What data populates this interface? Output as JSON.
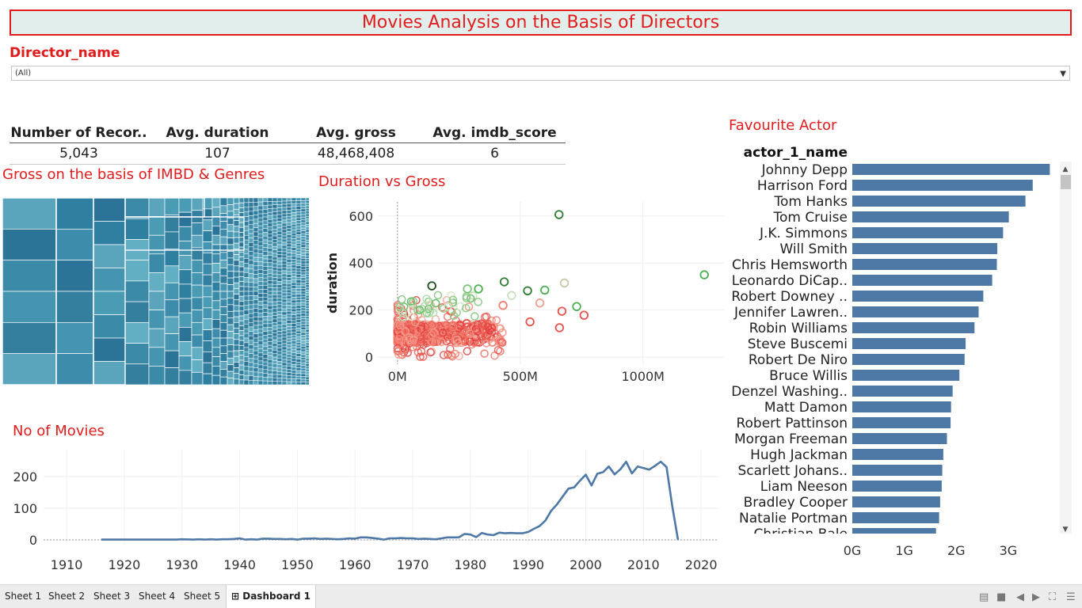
{
  "title": "Movies Analysis on the Basis of Directors",
  "filter": {
    "label": "Director_name",
    "value": "(All)"
  },
  "kpi": {
    "headers": [
      "Number of Recor..",
      "Avg. duration",
      "Avg. gross",
      "Avg. imdb_score"
    ],
    "values": [
      "5,043",
      "107",
      "48,468,408",
      "6"
    ]
  },
  "treemap": {
    "title": "Gross on the basis of IMBD & Genres"
  },
  "scatter_title": "Duration vs Gross",
  "line_title": "No of Movies",
  "bar_title": "Favourite Actor",
  "colors": {
    "accent_red": "#e21c1c",
    "bar": "#4e79a7",
    "line": "#4e79a7",
    "teal": "#3a8aa8"
  },
  "chart_data": [
    {
      "type": "scatter",
      "title": "Duration vs Gross",
      "xlabel": "",
      "ylabel": "duration",
      "xlim": [
        -80,
        1330
      ],
      "ylim": [
        -30,
        660
      ],
      "x_ticks": [
        "0M",
        "500M",
        "1000M"
      ],
      "x_tick_values": [
        0,
        500,
        1000
      ],
      "y_ticks": [
        "0",
        "200",
        "400",
        "600"
      ],
      "y_tick_values": [
        0,
        200,
        400,
        600
      ],
      "highlights": [
        {
          "x": 658,
          "y": 606,
          "c": "#2e7d32"
        },
        {
          "x": 1250,
          "y": 350,
          "c": "#4caf50"
        },
        {
          "x": 435,
          "y": 320,
          "c": "#2e7d32"
        },
        {
          "x": 680,
          "y": 315,
          "c": "#c8c8a8"
        },
        {
          "x": 140,
          "y": 303,
          "c": "#1b4d1b"
        },
        {
          "x": 330,
          "y": 290,
          "c": "#4caf50"
        },
        {
          "x": 285,
          "y": 290,
          "c": "#7cc47c"
        },
        {
          "x": 600,
          "y": 285,
          "c": "#4caf50"
        },
        {
          "x": 530,
          "y": 282,
          "c": "#2e7d32"
        },
        {
          "x": 465,
          "y": 262,
          "c": "#c8e0c0"
        },
        {
          "x": 730,
          "y": 215,
          "c": "#4caf50"
        },
        {
          "x": 760,
          "y": 178,
          "c": "#e8524a"
        },
        {
          "x": 670,
          "y": 195,
          "c": "#e8524a"
        },
        {
          "x": 660,
          "y": 125,
          "c": "#e8524a"
        },
        {
          "x": 540,
          "y": 150,
          "c": "#e8524a"
        },
        {
          "x": 580,
          "y": 230,
          "c": "#f0a090"
        },
        {
          "x": 430,
          "y": 220,
          "c": "#f08070"
        }
      ]
    },
    {
      "type": "line",
      "title": "No of Movies",
      "xlabel": "",
      "ylabel": "",
      "xlim": [
        1906,
        2023
      ],
      "ylim": [
        -15,
        285
      ],
      "x_ticks": [
        "1910",
        "1920",
        "1930",
        "1940",
        "1950",
        "1960",
        "1970",
        "1980",
        "1990",
        "2000",
        "2010",
        "2020"
      ],
      "y_ticks": [
        "0",
        "100",
        "200"
      ],
      "series": [
        {
          "x": [
            1916,
            1920,
            1925,
            1929,
            1930,
            1932,
            1933,
            1934,
            1935,
            1936,
            1937,
            1938,
            1939,
            1940,
            1941,
            1942,
            1943,
            1944,
            1945,
            1946,
            1947,
            1948,
            1949,
            1950,
            1951,
            1952,
            1953,
            1954,
            1955,
            1956,
            1957,
            1958,
            1959,
            1960,
            1961,
            1962,
            1963,
            1964,
            1965,
            1966,
            1967,
            1968,
            1969,
            1970,
            1971,
            1972,
            1973,
            1974,
            1975,
            1976,
            1977,
            1978,
            1979,
            1980,
            1981,
            1982,
            1983,
            1984,
            1985,
            1986,
            1987,
            1988,
            1989,
            1990,
            1991,
            1992,
            1993,
            1994,
            1995,
            1996,
            1997,
            1998,
            1999,
            2000,
            2001,
            2002,
            2003,
            2004,
            2005,
            2006,
            2007,
            2008,
            2009,
            2010,
            2011,
            2012,
            2013,
            2014,
            2015,
            2016
          ],
          "values": [
            1,
            1,
            1,
            1,
            2,
            1,
            2,
            1,
            2,
            1,
            2,
            2,
            3,
            5,
            1,
            2,
            1,
            4,
            4,
            3,
            3,
            2,
            3,
            1,
            4,
            4,
            5,
            3,
            4,
            3,
            2,
            3,
            5,
            4,
            8,
            8,
            6,
            4,
            1,
            5,
            5,
            6,
            5,
            5,
            3,
            4,
            3,
            2,
            5,
            8,
            8,
            8,
            19,
            17,
            9,
            22,
            17,
            15,
            23,
            21,
            22,
            21,
            21,
            25,
            35,
            44,
            61,
            92,
            112,
            137,
            162,
            166,
            187,
            206,
            172,
            209,
            214,
            232,
            207,
            223,
            247,
            210,
            232,
            227,
            222,
            234,
            247,
            230,
            107,
            0
          ]
        }
      ]
    },
    {
      "type": "bar",
      "title": "Favourite Actor",
      "xlabel": "",
      "ylabel": "actor_1_name",
      "x_ticks": [
        "0G",
        "1G",
        "2G",
        "3G"
      ],
      "xlim": [
        0,
        3.9
      ],
      "categories": [
        "Johnny Depp",
        "Harrison Ford",
        "Tom Hanks",
        "Tom Cruise",
        "J.K. Simmons",
        "Will Smith",
        "Chris Hemsworth",
        "Leonardo DiCap..",
        "Robert Downey ..",
        "Jennifer Lawren..",
        "Robin Williams",
        "Steve Buscemi",
        "Robert De Niro",
        "Bruce Willis",
        "Denzel Washing..",
        "Matt Damon",
        "Robert Pattinson",
        "Morgan Freeman",
        "Hugh Jackman",
        "Scarlett Johans..",
        "Liam Neeson",
        "Bradley Cooper",
        "Natalie Portman",
        "Christian Bale"
      ],
      "values": [
        3.8,
        3.47,
        3.33,
        3.01,
        2.9,
        2.79,
        2.78,
        2.69,
        2.52,
        2.43,
        2.35,
        2.18,
        2.16,
        2.06,
        1.93,
        1.9,
        1.89,
        1.82,
        1.75,
        1.73,
        1.72,
        1.69,
        1.67,
        1.61
      ],
      "unit": "G"
    }
  ]
}
